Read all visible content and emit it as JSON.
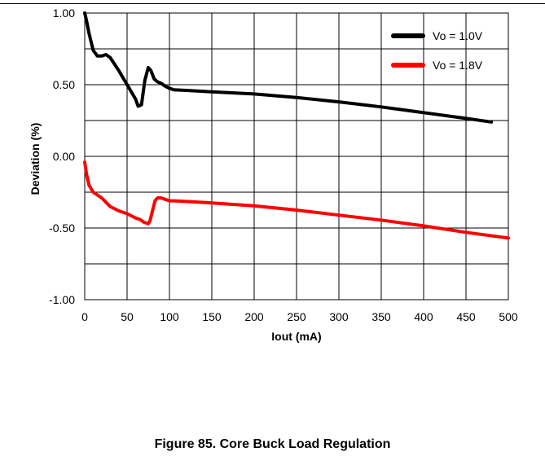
{
  "caption": "Figure 85. Core Buck Load Regulation",
  "chart_data": {
    "type": "line",
    "title": "",
    "xlabel": "Iout (mA)",
    "ylabel": "Deviation (%)",
    "xlim": [
      0,
      500
    ],
    "ylim": [
      -1.0,
      1.0
    ],
    "x_ticks": [
      "0",
      "50",
      "100",
      "150",
      "200",
      "250",
      "300",
      "350",
      "400",
      "450",
      "500"
    ],
    "y_ticks": [
      "1.00",
      "0.50",
      "0.00",
      "-0.50",
      "-1.00"
    ],
    "grid": true,
    "legend_position": "top-right",
    "series": [
      {
        "name": "Vo = 1.0V",
        "color": "#000000",
        "x": [
          0,
          2,
          5,
          10,
          15,
          20,
          25,
          30,
          40,
          50,
          55,
          60,
          63,
          67,
          71,
          75,
          78,
          82,
          86,
          90,
          95,
          100,
          105,
          120,
          150,
          200,
          250,
          300,
          350,
          400,
          450,
          480
        ],
        "y": [
          1.0,
          0.95,
          0.86,
          0.74,
          0.7,
          0.7,
          0.71,
          0.69,
          0.6,
          0.5,
          0.45,
          0.4,
          0.35,
          0.36,
          0.53,
          0.62,
          0.6,
          0.54,
          0.52,
          0.51,
          0.49,
          0.475,
          0.465,
          0.46,
          0.45,
          0.435,
          0.41,
          0.38,
          0.345,
          0.305,
          0.265,
          0.24
        ]
      },
      {
        "name": "Vo = 1.8V",
        "color": "#ff0000",
        "x": [
          0,
          2,
          5,
          10,
          15,
          20,
          25,
          30,
          40,
          50,
          60,
          65,
          70,
          75,
          77,
          80,
          83,
          86,
          90,
          95,
          100,
          105,
          120,
          150,
          200,
          250,
          300,
          350,
          400,
          450,
          500
        ],
        "y": [
          -0.04,
          -0.12,
          -0.2,
          -0.25,
          -0.27,
          -0.29,
          -0.32,
          -0.35,
          -0.38,
          -0.4,
          -0.43,
          -0.44,
          -0.46,
          -0.47,
          -0.45,
          -0.38,
          -0.31,
          -0.29,
          -0.29,
          -0.3,
          -0.31,
          -0.31,
          -0.315,
          -0.325,
          -0.345,
          -0.375,
          -0.41,
          -0.445,
          -0.485,
          -0.53,
          -0.57
        ]
      }
    ]
  }
}
